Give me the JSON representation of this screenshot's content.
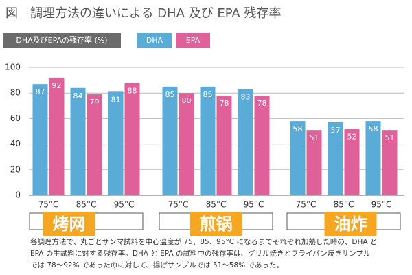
{
  "chart_data": {
    "type": "bar",
    "title": "図　調理方法の違いによる DHA 及び EPA 残存率",
    "y_label": "DHA及びEPAの残存率 (%)",
    "categories": [
      "75°C",
      "85°C",
      "95°C",
      "75°C",
      "85°C",
      "95°C",
      "75°C",
      "85°C",
      "95°C"
    ],
    "groups": [
      "烤网",
      "煎锅",
      "油炸"
    ],
    "series": [
      {
        "name": "DHA",
        "color": "#5aabd8",
        "values": [
          87,
          84,
          81,
          85,
          85,
          83,
          58,
          57,
          58
        ]
      },
      {
        "name": "EPA",
        "color": "#e0619a",
        "values": [
          92,
          79,
          88,
          80,
          78,
          78,
          51,
          52,
          51
        ]
      }
    ],
    "ylim": [
      0,
      100
    ],
    "yticks": [
      0,
      20,
      40,
      60,
      80,
      100
    ],
    "grid": true,
    "note": [
      "各調理方法で、丸ごとサンマ試料を中心温度が 75、85、95°C になるまでそれぞれ加熱した時の、DHA と",
      "EPA の生試料に対する残存率。DHA と EPA の試料中の残存率は、グリル焼きとフライパン焼きサンプル",
      "では 78〜92% であったのに対して、揚げサンプルでは 51〜58% であった。"
    ]
  }
}
